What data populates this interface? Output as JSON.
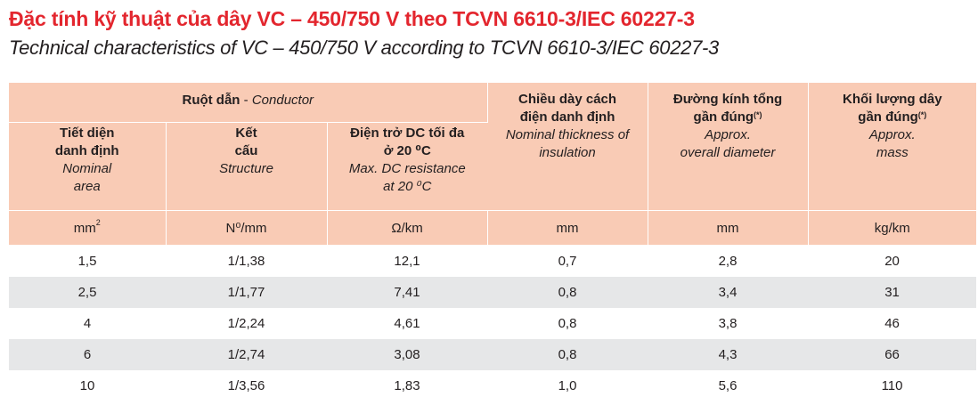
{
  "title_vn": "Đặc tính kỹ thuật của dây VC – 450/750  V theo TCVN 6610-3/IEC 60227-3",
  "title_en": "Technical characteristics of VC – 450/750 V according to TCVN 6610-3/IEC 60227-3",
  "header": {
    "conductor_vn": "Ruột dẫn",
    "conductor_sep": " - ",
    "conductor_en": "Conductor",
    "insulation_vn_1": "Chiều dày cách",
    "insulation_vn_2": "điện danh định",
    "insulation_en_1": "Nominal thickness of",
    "insulation_en_2": "insulation",
    "diameter_vn_1": "Đường kính tổng",
    "diameter_vn_2": "gần đúng",
    "diameter_mark": "(*)",
    "diameter_en_1": "Approx.",
    "diameter_en_2": "overall diameter",
    "mass_vn_1": "Khối lượng dây",
    "mass_vn_2": "gần đúng",
    "mass_mark": "(*)",
    "mass_en_1": "Approx.",
    "mass_en_2": "mass",
    "area_vn_1": "Tiết diện",
    "area_vn_2": "danh định",
    "area_en_1": "Nominal",
    "area_en_2": "area",
    "structure_vn_1": "Kết",
    "structure_vn_2": "cấu",
    "structure_en": "Structure",
    "resistance_vn_1": "Điện trở DC tối đa",
    "resistance_vn_2": "ở 20 ⁰C",
    "resistance_en_1": "Max. DC resistance",
    "resistance_en_2": "at 20 ⁰C"
  },
  "units": {
    "area": "mm",
    "area_sup": "2",
    "structure": "N⁰/mm",
    "resistance": "Ω/km",
    "insulation": "mm",
    "diameter": "mm",
    "mass": "kg/km"
  },
  "rows": [
    {
      "area": "1,5",
      "structure": "1/1,38",
      "resistance": "12,1",
      "insulation": "0,7",
      "diameter": "2,8",
      "mass": "20"
    },
    {
      "area": "2,5",
      "structure": "1/1,77",
      "resistance": "7,41",
      "insulation": "0,8",
      "diameter": "3,4",
      "mass": "31"
    },
    {
      "area": "4",
      "structure": "1/2,24",
      "resistance": "4,61",
      "insulation": "0,8",
      "diameter": "3,8",
      "mass": "46"
    },
    {
      "area": "6",
      "structure": "1/2,74",
      "resistance": "3,08",
      "insulation": "0,8",
      "diameter": "4,3",
      "mass": "66"
    },
    {
      "area": "10",
      "structure": "1/3,56",
      "resistance": "1,83",
      "insulation": "1,0",
      "diameter": "5,6",
      "mass": "110"
    }
  ]
}
